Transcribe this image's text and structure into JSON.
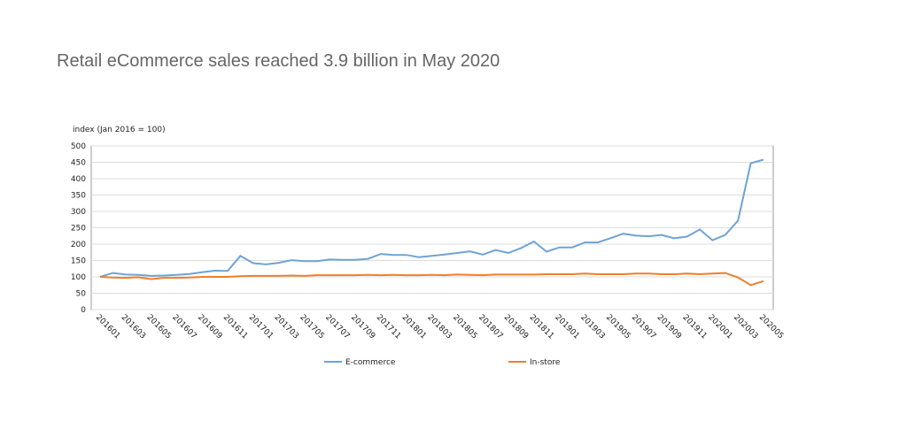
{
  "chart_data": {
    "type": "line",
    "title": "Retail eCommerce sales reached 3.9 billion in May 2020",
    "y_label": "index (Jan 2016 = 100)",
    "categories": [
      "201601",
      null,
      "201603",
      null,
      "201605",
      null,
      "201607",
      null,
      "201609",
      null,
      "201611",
      null,
      "201701",
      null,
      "201703",
      null,
      "201705",
      null,
      "201707",
      null,
      "201709",
      null,
      "201711",
      null,
      "201801",
      null,
      "201803",
      null,
      "201805",
      null,
      "201807",
      null,
      "201809",
      null,
      "201811",
      null,
      "201901",
      null,
      "201903",
      null,
      "201905",
      null,
      "201907",
      null,
      "201909",
      null,
      "201911",
      null,
      "202001",
      null,
      "202003",
      null,
      "202005"
    ],
    "series": [
      {
        "name": "E-commerce",
        "color": "#6fa3d4",
        "values": [
          100,
          112,
          107,
          106,
          103,
          104,
          106,
          109,
          114,
          119,
          118,
          164,
          142,
          138,
          143,
          151,
          148,
          148,
          153,
          152,
          152,
          155,
          170,
          167,
          167,
          160,
          164,
          168,
          173,
          178,
          168,
          182,
          173,
          188,
          208,
          177,
          190,
          190,
          205,
          205,
          218,
          232,
          226,
          224,
          228,
          218,
          223,
          245,
          212,
          228,
          272,
          447,
          458
        ]
      },
      {
        "name": "In-store",
        "color": "#ee7f2d",
        "values": [
          100,
          98,
          97,
          99,
          93,
          97,
          97,
          98,
          100,
          100,
          100,
          102,
          103,
          103,
          103,
          104,
          103,
          105,
          105,
          105,
          105,
          106,
          105,
          106,
          105,
          105,
          106,
          105,
          107,
          106,
          105,
          107,
          107,
          107,
          107,
          108,
          108,
          108,
          110,
          108,
          108,
          108,
          110,
          110,
          108,
          108,
          110,
          108,
          110,
          112,
          98,
          75,
          87
        ]
      }
    ],
    "ylim": [
      0,
      500
    ],
    "yticks": [
      0,
      50,
      100,
      150,
      200,
      250,
      300,
      350,
      400,
      450,
      500
    ],
    "grid": true
  }
}
